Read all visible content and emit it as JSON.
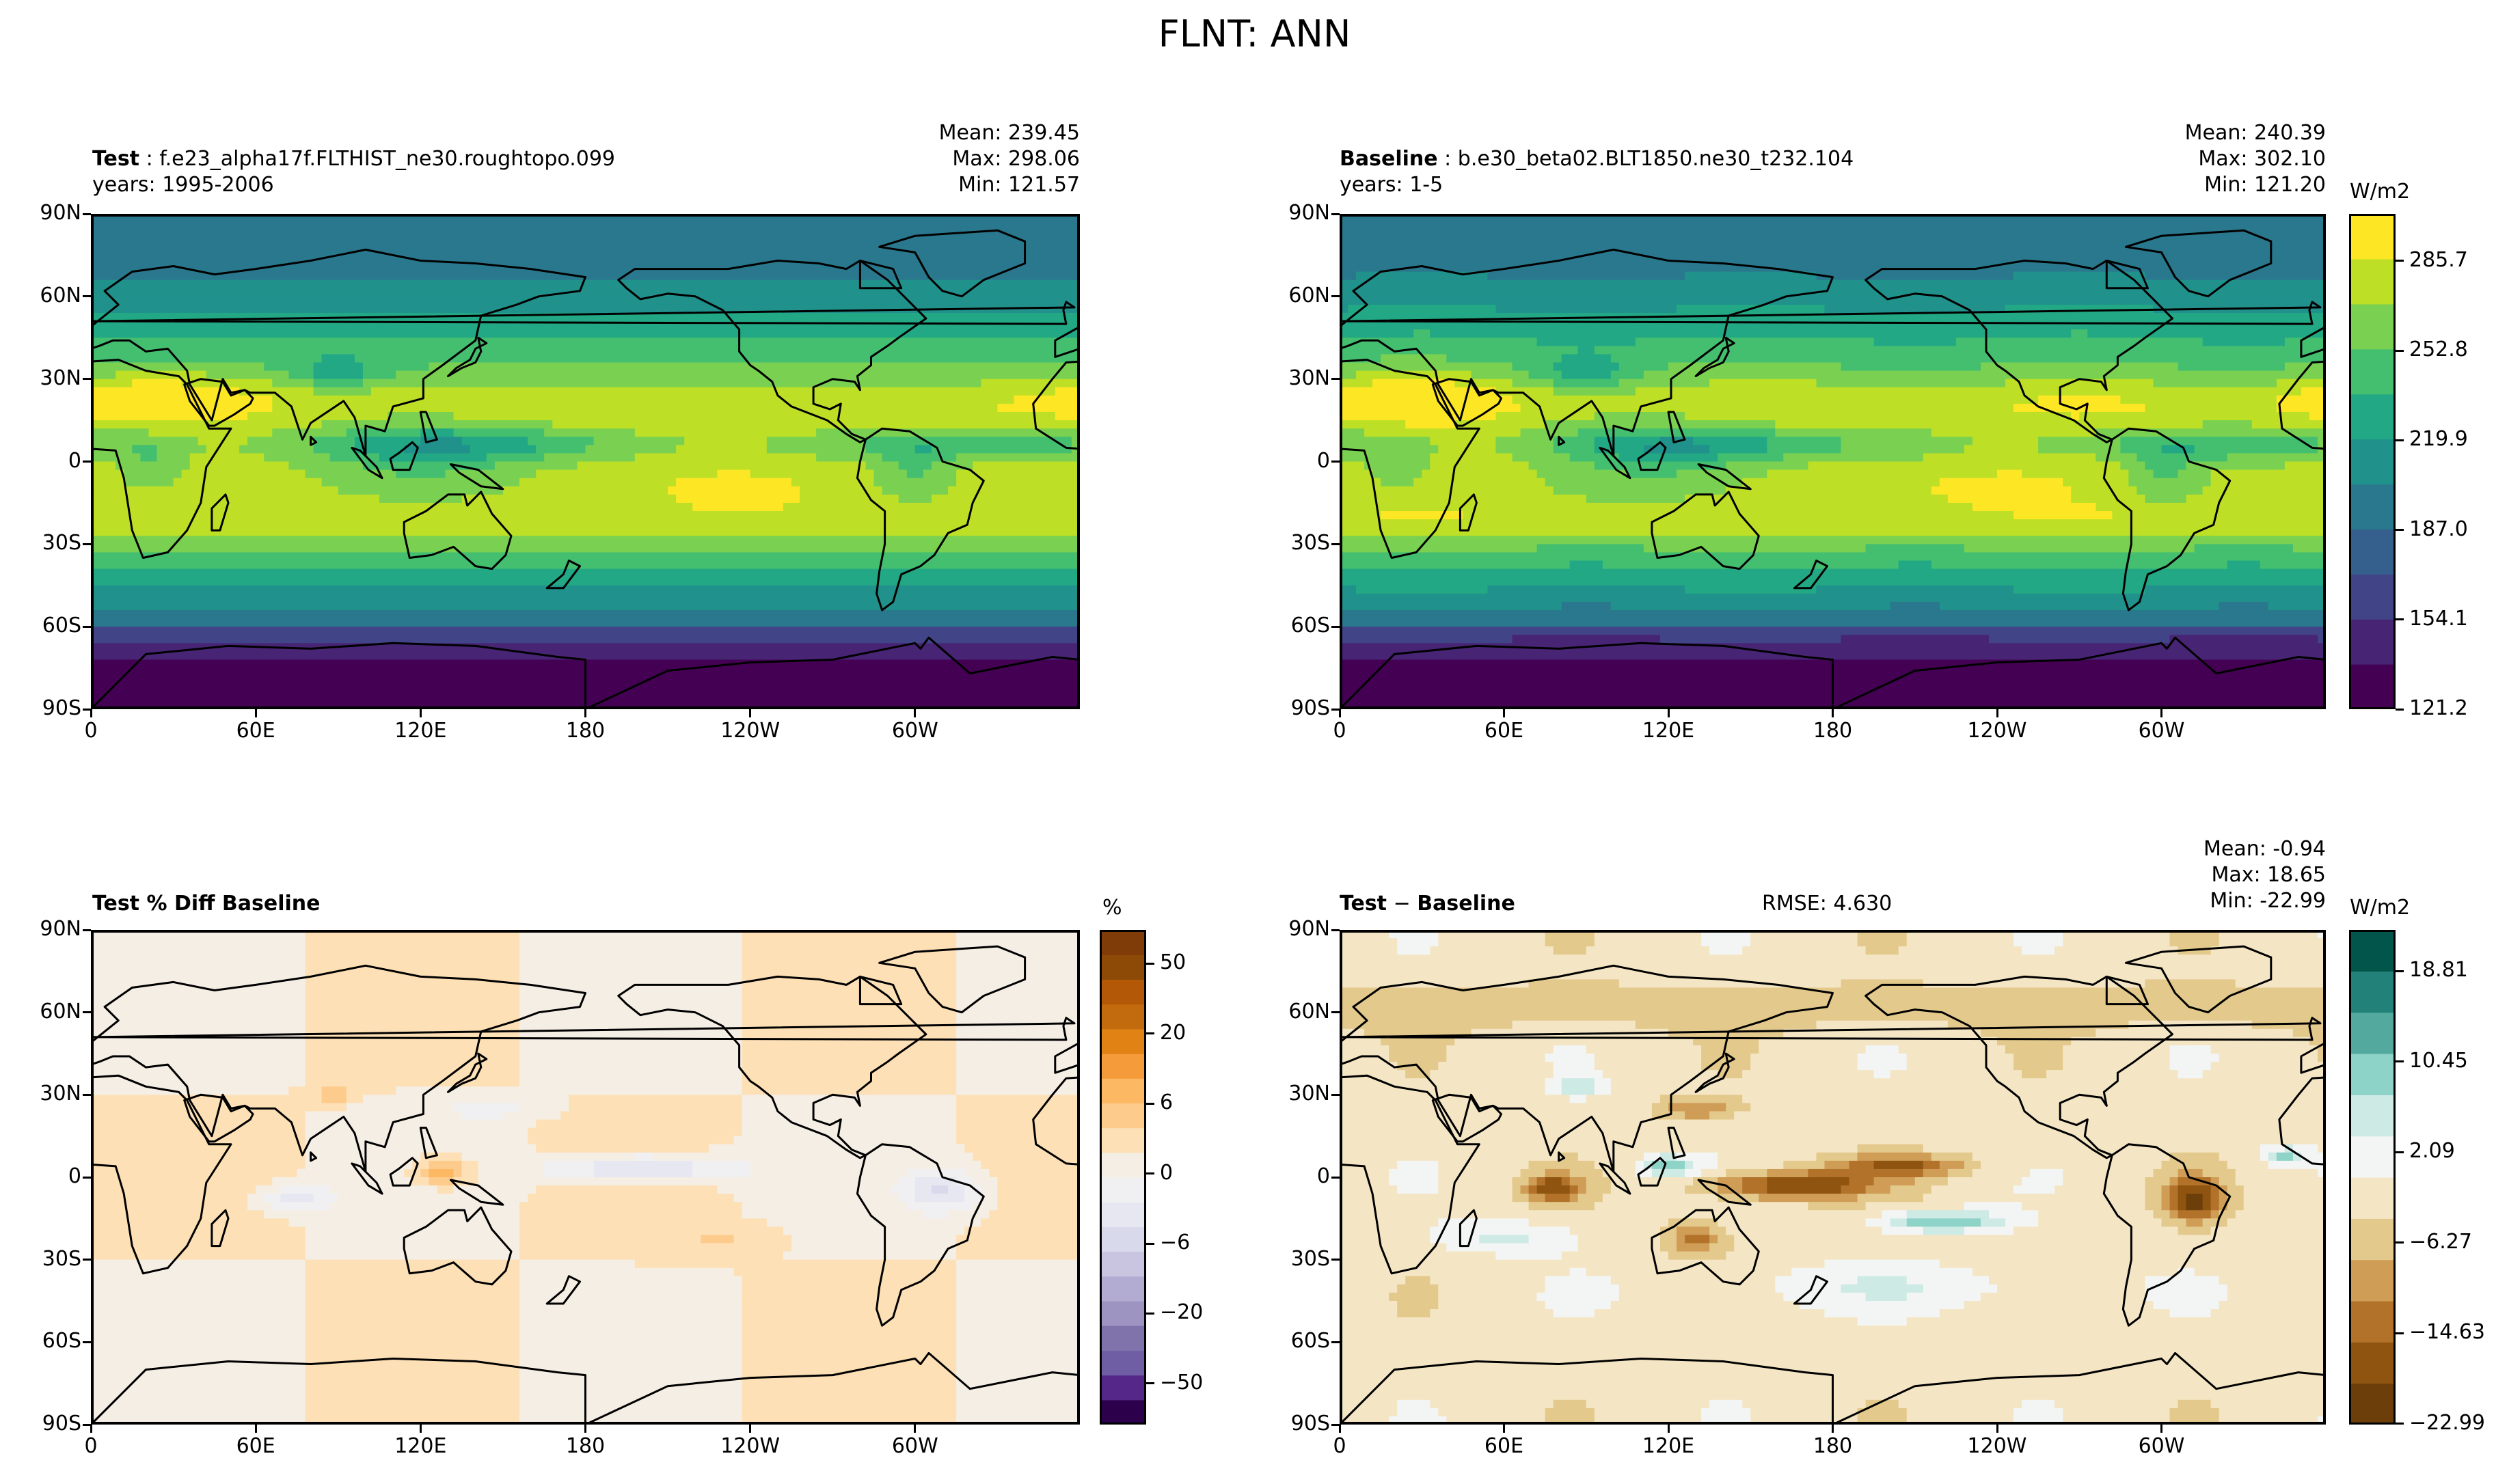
{
  "figure": {
    "suptitle": "FLNT: ANN"
  },
  "axes": {
    "lat_ticks": [
      "90N",
      "60N",
      "30N",
      "0",
      "30S",
      "60S",
      "90S"
    ],
    "lon_ticks": [
      "0",
      "60E",
      "120E",
      "180",
      "120W",
      "60W"
    ]
  },
  "panels": {
    "test": {
      "label_bold": "Test",
      "label_sep": " : ",
      "label_rest": "f.e23_alpha17f.FLTHIST_ne30.roughtopo.099",
      "years": "years: 1995-2006",
      "stats": {
        "mean": "Mean: 239.45",
        "max": "Max: 298.06",
        "min": "Min: 121.57"
      }
    },
    "baseline": {
      "label_bold": "Baseline",
      "label_sep": " : ",
      "label_rest": "b.e30_beta02.BLT1850.ne30_t232.104",
      "years": "years: 1-5",
      "stats": {
        "mean": "Mean: 240.39",
        "max": "Max: 302.10",
        "min": "Min: 121.20"
      }
    },
    "pct_diff": {
      "title": "Test % Diff Baseline"
    },
    "diff": {
      "title_bold1": "Test",
      "title_mid": " − ",
      "title_bold2": "Baseline",
      "rmse": "RMSE: 4.630",
      "stats": {
        "mean": "Mean: -0.94",
        "max": "Max: 18.65",
        "min": "Min: -22.99"
      }
    }
  },
  "colorbars": {
    "main": {
      "unit": "W/m2",
      "ticks": [
        "285.7",
        "252.8",
        "219.9",
        "187.0",
        "154.1",
        "121.2"
      ],
      "colors": [
        "#440154",
        "#482475",
        "#414487",
        "#355f8d",
        "#2a788e",
        "#21918c",
        "#22a884",
        "#44bf70",
        "#7ad151",
        "#bddf26",
        "#fde725"
      ]
    },
    "pct": {
      "unit": "%",
      "ticks": [
        "50",
        "20",
        "6",
        "0",
        "−6",
        "−20",
        "−50"
      ],
      "colors": [
        "#2d004b",
        "#542788",
        "#6f5ea3",
        "#8073ac",
        "#9d94c1",
        "#b2abd2",
        "#c9c4e0",
        "#d8daeb",
        "#e7e7f1",
        "#f0f0f2",
        "#f5eee5",
        "#fde0b6",
        "#fdcc8d",
        "#fdb863",
        "#f59b3a",
        "#e08214",
        "#c26a0e",
        "#b35806",
        "#8c4a06",
        "#7f3b08"
      ]
    },
    "diff": {
      "unit": "W/m2",
      "ticks": [
        "18.81",
        "10.45",
        "2.09",
        "−6.27",
        "−14.63",
        "−22.99"
      ],
      "colors": [
        "#6b3e0a",
        "#8f5510",
        "#b2722a",
        "#cf9d56",
        "#e3c98c",
        "#f4e6c4",
        "#f3f5f4",
        "#cdeae5",
        "#8dd3c7",
        "#53a99e",
        "#22827a",
        "#01554a"
      ]
    }
  },
  "chart_data": [
    {
      "type": "heatmap",
      "title": "Test : f.e23_alpha17f.FLTHIST_ne30.roughtopo.099",
      "subtitle": "years: 1995-2006",
      "variable": "FLNT",
      "season": "ANN",
      "units": "W/m2",
      "x_range": [
        0,
        360
      ],
      "y_range": [
        -90,
        90
      ],
      "stats": {
        "mean": 239.45,
        "max": 298.06,
        "min": 121.57
      },
      "levels": [
        121.2,
        137.65,
        154.1,
        170.55,
        187.0,
        203.45,
        219.9,
        236.35,
        252.8,
        269.25,
        285.7,
        302.1
      ]
    },
    {
      "type": "heatmap",
      "title": "Baseline : b.e30_beta02.BLT1850.ne30_t232.104",
      "subtitle": "years: 1-5",
      "units": "W/m2",
      "x_range": [
        0,
        360
      ],
      "y_range": [
        -90,
        90
      ],
      "stats": {
        "mean": 240.39,
        "max": 302.1,
        "min": 121.2
      },
      "levels": [
        121.2,
        137.65,
        154.1,
        170.55,
        187.0,
        203.45,
        219.9,
        236.35,
        252.8,
        269.25,
        285.7,
        302.1
      ]
    },
    {
      "type": "heatmap",
      "title": "Test % Diff Baseline",
      "units": "%",
      "x_range": [
        0,
        360
      ],
      "y_range": [
        -90,
        90
      ],
      "levels": [
        -100,
        -75,
        -50,
        -40,
        -30,
        -20,
        -10,
        -8,
        -6,
        -4,
        -2,
        0,
        2,
        4,
        6,
        8,
        10,
        20,
        30,
        40,
        50,
        75,
        100
      ]
    },
    {
      "type": "heatmap",
      "title": "Test − Baseline",
      "units": "W/m2",
      "rmse": 4.63,
      "x_range": [
        0,
        360
      ],
      "y_range": [
        -90,
        90
      ],
      "stats": {
        "mean": -0.94,
        "max": 18.65,
        "min": -22.99
      },
      "levels": [
        -22.99,
        -18.81,
        -14.63,
        -10.45,
        -6.27,
        -2.09,
        2.09,
        6.27,
        10.45,
        14.63,
        18.81,
        22.99
      ]
    }
  ]
}
